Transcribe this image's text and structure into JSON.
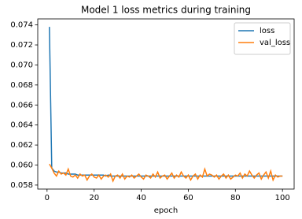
{
  "chart_data": {
    "type": "line",
    "title": "Model 1 loss metrics during training",
    "xlabel": "epoch",
    "x": [
      1,
      2,
      3,
      4,
      5,
      6,
      7,
      8,
      9,
      10,
      11,
      12,
      13,
      14,
      15,
      16,
      17,
      18,
      19,
      20,
      21,
      22,
      23,
      24,
      25,
      26,
      27,
      28,
      29,
      30,
      31,
      32,
      33,
      34,
      35,
      36,
      37,
      38,
      39,
      40,
      41,
      42,
      43,
      44,
      45,
      46,
      47,
      48,
      49,
      50,
      51,
      52,
      53,
      54,
      55,
      56,
      57,
      58,
      59,
      60,
      61,
      62,
      63,
      64,
      65,
      66,
      67,
      68,
      69,
      70,
      71,
      72,
      73,
      74,
      75,
      76,
      77,
      78,
      79,
      80,
      81,
      82,
      83,
      84,
      85,
      86,
      87,
      88,
      89,
      90,
      91,
      92,
      93,
      94,
      95,
      96,
      97,
      98,
      99,
      100
    ],
    "series": [
      {
        "name": "loss",
        "color": "#1f77b4",
        "values": [
          0.0738,
          0.0597,
          0.0594,
          0.0593,
          0.0593,
          0.0592,
          0.0592,
          0.0592,
          0.0591,
          0.0591,
          0.0591,
          0.0591,
          0.059,
          0.059,
          0.059,
          0.059,
          0.059,
          0.059,
          0.059,
          0.059,
          0.059,
          0.059,
          0.059,
          0.059,
          0.0589,
          0.059,
          0.0589,
          0.0589,
          0.0589,
          0.0589,
          0.0589,
          0.0589,
          0.0589,
          0.0589,
          0.0589,
          0.0589,
          0.0589,
          0.0589,
          0.0589,
          0.0589,
          0.0589,
          0.0589,
          0.0589,
          0.0589,
          0.0589,
          0.0589,
          0.0589,
          0.0589,
          0.0589,
          0.0589,
          0.0589,
          0.0589,
          0.0589,
          0.0589,
          0.0589,
          0.0589,
          0.0589,
          0.0589,
          0.0589,
          0.0589,
          0.0589,
          0.0589,
          0.0589,
          0.0589,
          0.0589,
          0.0589,
          0.0589,
          0.0589,
          0.0589,
          0.0589,
          0.0589,
          0.0589,
          0.0589,
          0.0589,
          0.0589,
          0.0589,
          0.0589,
          0.0589,
          0.0589,
          0.0589,
          0.0589,
          0.0589,
          0.0589,
          0.0589,
          0.0589,
          0.0589,
          0.0589,
          0.0589,
          0.0589,
          0.0589,
          0.0589,
          0.0589,
          0.0589,
          0.0589,
          0.0589,
          0.0589,
          0.0589,
          0.0589,
          0.0589,
          0.0589
        ]
      },
      {
        "name": "val_loss",
        "color": "#ff7f0e",
        "values": [
          0.0601,
          0.0597,
          0.0592,
          0.0589,
          0.0594,
          0.0591,
          0.0592,
          0.059,
          0.0596,
          0.0589,
          0.0588,
          0.059,
          0.0587,
          0.0591,
          0.0589,
          0.059,
          0.0585,
          0.0589,
          0.0591,
          0.0588,
          0.0587,
          0.059,
          0.0586,
          0.0589,
          0.059,
          0.0588,
          0.0591,
          0.0584,
          0.0589,
          0.059,
          0.0587,
          0.0591,
          0.0586,
          0.0589,
          0.0588,
          0.059,
          0.0587,
          0.0589,
          0.0591,
          0.0588,
          0.0586,
          0.059,
          0.0589,
          0.0587,
          0.0591,
          0.0588,
          0.0593,
          0.0587,
          0.0589,
          0.059,
          0.0586,
          0.0589,
          0.0592,
          0.0587,
          0.059,
          0.0588,
          0.0593,
          0.0589,
          0.0587,
          0.059,
          0.0585,
          0.0589,
          0.0591,
          0.0586,
          0.059,
          0.0588,
          0.0596,
          0.0589,
          0.0591,
          0.059,
          0.0588,
          0.059,
          0.0586,
          0.0589,
          0.0591,
          0.0587,
          0.059,
          0.0586,
          0.0588,
          0.059,
          0.0589,
          0.0592,
          0.0587,
          0.0591,
          0.0589,
          0.0594,
          0.059,
          0.0587,
          0.059,
          0.0592,
          0.0586,
          0.059,
          0.0593,
          0.0587,
          0.0594,
          0.0585,
          0.059,
          0.0588,
          0.0589,
          0.0589
        ]
      }
    ],
    "xlim": [
      -3.95,
      104.95
    ],
    "xticks": [
      0,
      20,
      40,
      60,
      80,
      100
    ],
    "ylim": [
      0.0576,
      0.0746
    ],
    "yticks": [
      0.058,
      {
        "value": 0.06,
        "label": "0.060"
      },
      0.062,
      0.064,
      0.066,
      0.068,
      {
        "value": 0.07,
        "label": "0.070"
      },
      0.072,
      0.074
    ],
    "legend": "upper right"
  }
}
